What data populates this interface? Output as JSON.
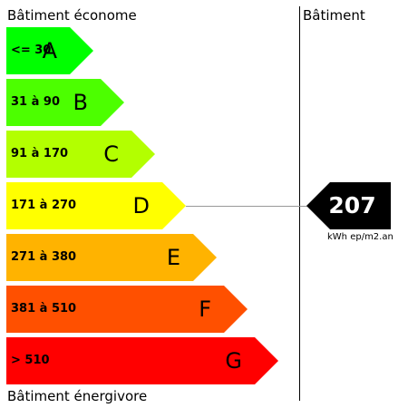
{
  "header": {
    "left_title": "Bâtiment économe",
    "right_title": "Bâtiment",
    "bottom_title": "Bâtiment énergivore"
  },
  "bands": [
    {
      "letter": "A",
      "range": "<= 30",
      "color": "#00ff00"
    },
    {
      "letter": "B",
      "range": "31 à 90",
      "color": "#4cff00"
    },
    {
      "letter": "C",
      "range": "91 à 170",
      "color": "#b3ff00"
    },
    {
      "letter": "D",
      "range": "171 à 270",
      "color": "#ffff00"
    },
    {
      "letter": "E",
      "range": "271 à 380",
      "color": "#ffb300"
    },
    {
      "letter": "F",
      "range": "381 à 510",
      "color": "#ff5000"
    },
    {
      "letter": "G",
      "range": "> 510",
      "color": "#ff0000"
    }
  ],
  "result": {
    "value": "207",
    "unit": "kWh ep/m2.an",
    "class": "D",
    "color": "#000000"
  }
}
